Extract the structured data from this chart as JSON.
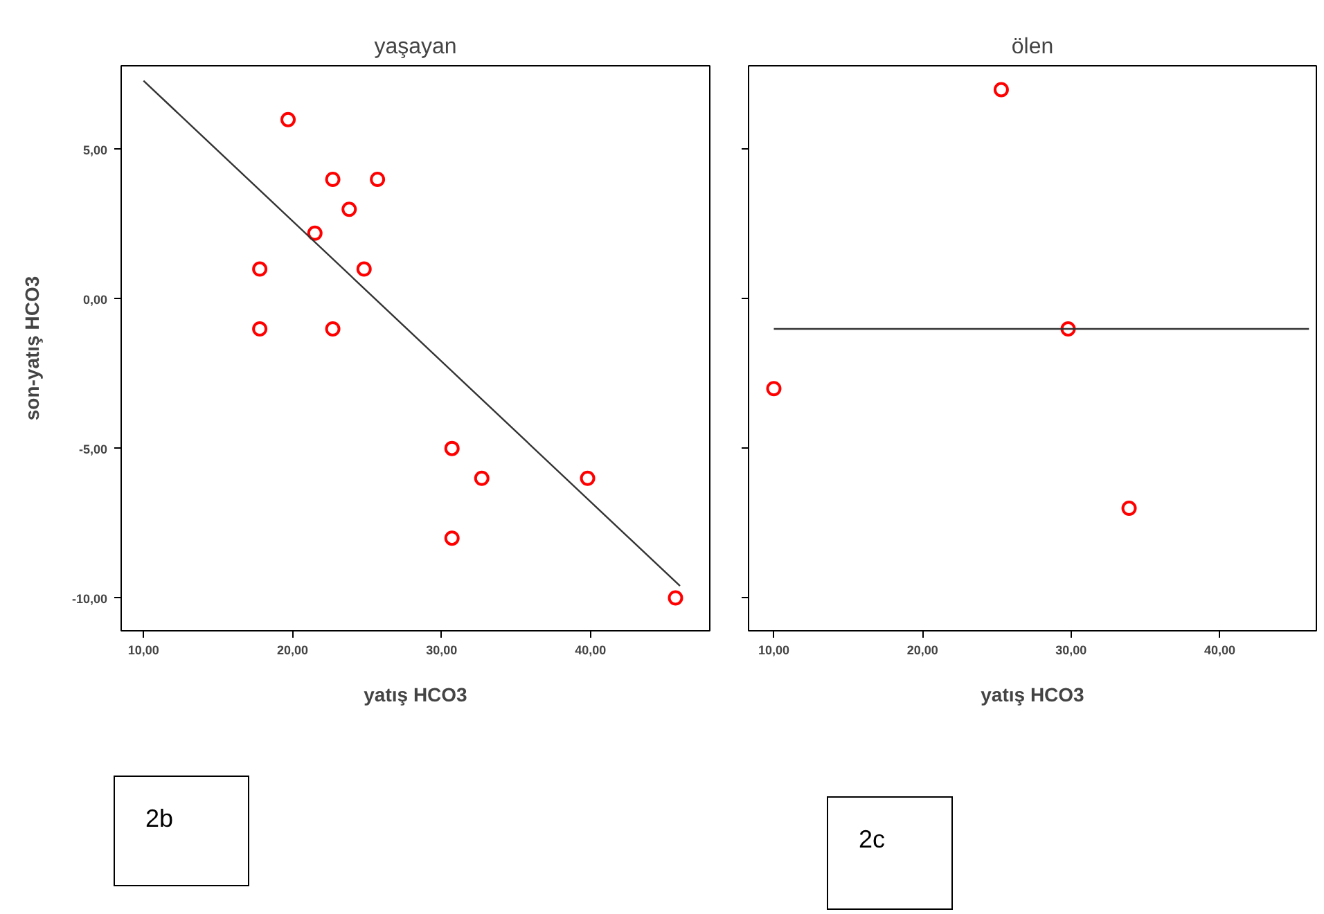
{
  "chart_data": [
    {
      "type": "scatter",
      "title": "yaşayan",
      "xlabel": "yatış HCO3",
      "ylabel": "son-yatış HCO3",
      "xlim": [
        8.5,
        48
      ],
      "ylim": [
        -11.1,
        7.8
      ],
      "xticks": [
        {
          "value": 10,
          "label": "10,00"
        },
        {
          "value": 20,
          "label": "20,00"
        },
        {
          "value": 30,
          "label": "30,00"
        },
        {
          "value": 40,
          "label": "40,00"
        }
      ],
      "yticks": [
        {
          "value": -10,
          "label": "-10,00"
        },
        {
          "value": -5,
          "label": "-5,00"
        },
        {
          "value": 0,
          "label": "0,00"
        },
        {
          "value": 5,
          "label": "5,00"
        }
      ],
      "grid": false,
      "annotations": [
        "2b"
      ],
      "series": [
        {
          "type": "scatter",
          "marker": "circle",
          "color": "#ff0000",
          "x": [
            19.7,
            22.7,
            25.7,
            23.8,
            21.5,
            17.8,
            24.8,
            17.8,
            22.7,
            30.7,
            32.7,
            39.8,
            30.7,
            45.7
          ],
          "values": [
            6,
            4,
            4,
            3,
            2.2,
            1,
            1,
            -1,
            -1,
            -5,
            -6,
            -6,
            -8,
            -10
          ]
        },
        {
          "type": "line",
          "color": "#333333",
          "x": [
            10,
            46
          ],
          "values": [
            7.3,
            -9.6
          ]
        }
      ]
    },
    {
      "type": "scatter",
      "title": "ölen",
      "xlabel": "yatış HCO3",
      "xlim": [
        8.3,
        46.5
      ],
      "ylim": [
        -11.1,
        7.8
      ],
      "tick_labels": "x",
      "xticks": [
        {
          "value": 10,
          "label": "10,00"
        },
        {
          "value": 20,
          "label": "20,00"
        },
        {
          "value": 30,
          "label": "30,00"
        },
        {
          "value": 40,
          "label": "40,00"
        }
      ],
      "yticks": [
        {
          "value": -10,
          "label": null
        },
        {
          "value": -5,
          "label": null
        },
        {
          "value": 0,
          "label": null
        },
        {
          "value": 5,
          "label": null
        }
      ],
      "grid": false,
      "annotations": [
        "2c"
      ],
      "series": [
        {
          "type": "scatter",
          "marker": "circle",
          "color": "#ff0000",
          "x": [
            10,
            25.3,
            29.8,
            33.9
          ],
          "values": [
            -3,
            7,
            -1,
            -7
          ]
        },
        {
          "type": "line",
          "color": "#333333",
          "x": [
            10,
            46
          ],
          "values": [
            -1,
            -1
          ]
        }
      ]
    }
  ]
}
